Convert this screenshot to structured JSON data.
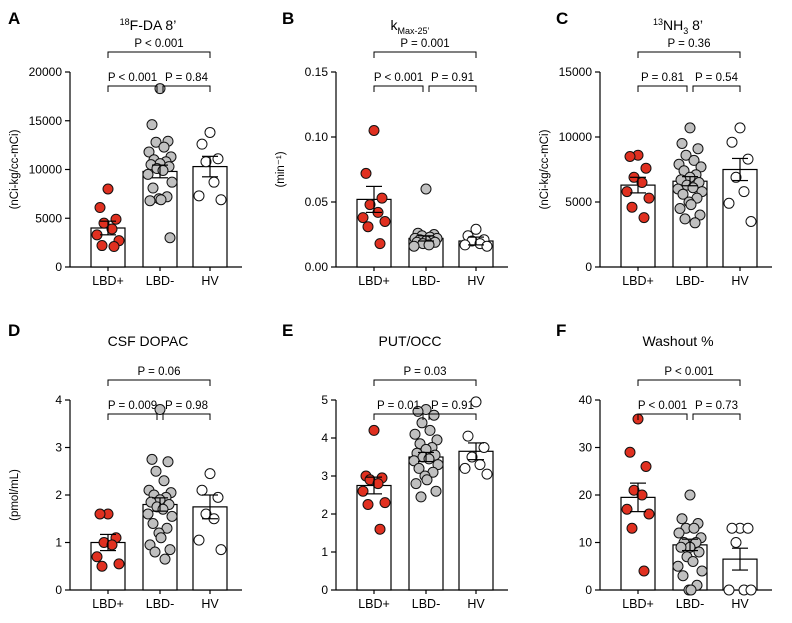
{
  "colors": {
    "LBD+": "#e03020",
    "LBD-": "#c0c0c0",
    "HV": "#ffffff"
  },
  "chart_data": [
    {
      "panel": "A",
      "type": "bar",
      "title_sup": "18",
      "title": "F-DA 8’",
      "ylabel": "(nCi-kg/cc-mCi)",
      "categories": [
        "LBD+",
        "LBD-",
        "HV"
      ],
      "ylim": [
        0,
        20000
      ],
      "yticks": [
        0,
        5000,
        10000,
        15000,
        20000
      ],
      "ytick_labels": [
        "0",
        "5000",
        "10000",
        "15000",
        "20000"
      ],
      "means": [
        4000,
        9800,
        10300
      ],
      "sem": [
        700,
        650,
        1050
      ],
      "points": [
        [
          8000,
          6100,
          4900,
          4500,
          3900,
          3300,
          2700,
          2200,
          2100
        ],
        [
          18300,
          14600,
          12900,
          12800,
          12300,
          11800,
          11300,
          11000,
          10800,
          10600,
          10500,
          10300,
          10100,
          9900,
          9500,
          8700,
          8100,
          7200,
          7000,
          6900,
          6800,
          3000
        ],
        [
          13800,
          12600,
          11100,
          10800,
          8700,
          7300,
          6900
        ]
      ],
      "comparisons": [
        {
          "pair": [
            0,
            1
          ],
          "label": "P < 0.001",
          "level": 1
        },
        {
          "pair": [
            1,
            2
          ],
          "label": "P = 0.84",
          "level": 1
        },
        {
          "pair": [
            0,
            2
          ],
          "label": "P < 0.001",
          "level": 2
        }
      ]
    },
    {
      "panel": "B",
      "type": "bar",
      "title_main": "k",
      "title_sub": "Max-25’",
      "ylabel": "(min⁻¹)",
      "categories": [
        "LBD+",
        "LBD-",
        "HV"
      ],
      "ylim": [
        0,
        0.15
      ],
      "yticks": [
        0,
        0.05,
        0.1,
        0.15
      ],
      "ytick_labels": [
        "0.00",
        "0.05",
        "0.10",
        "0.15"
      ],
      "means": [
        0.052,
        0.022,
        0.02
      ],
      "sem": [
        0.01,
        0.002,
        0.003
      ],
      "points": [
        [
          0.105,
          0.072,
          0.053,
          0.048,
          0.042,
          0.038,
          0.035,
          0.031,
          0.018
        ],
        [
          0.06,
          0.026,
          0.025,
          0.024,
          0.023,
          0.022,
          0.022,
          0.021,
          0.02,
          0.02,
          0.019,
          0.019,
          0.018,
          0.017,
          0.016
        ],
        [
          0.029,
          0.024,
          0.021,
          0.02,
          0.018,
          0.017,
          0.016
        ]
      ],
      "comparisons": [
        {
          "pair": [
            0,
            1
          ],
          "label": "P < 0.001",
          "level": 1
        },
        {
          "pair": [
            1,
            2
          ],
          "label": "P = 0.91",
          "level": 1
        },
        {
          "pair": [
            0,
            2
          ],
          "label": "P = 0.001",
          "level": 2
        }
      ]
    },
    {
      "panel": "C",
      "type": "bar",
      "title_sup": "13",
      "title": "NH",
      "title_sub": "3",
      "title_tail": " 8’",
      "ylabel": "(nCi-kg/cc-mCi)",
      "categories": [
        "LBD+",
        "LBD-",
        "HV"
      ],
      "ylim": [
        0,
        15000
      ],
      "yticks": [
        0,
        5000,
        10000,
        15000
      ],
      "ytick_labels": [
        "0",
        "5000",
        "10000",
        "15000"
      ],
      "means": [
        6300,
        6600,
        7500
      ],
      "sem": [
        600,
        350,
        850
      ],
      "points": [
        [
          8600,
          8500,
          7600,
          6900,
          6500,
          5800,
          5300,
          4600,
          3800
        ],
        [
          10700,
          9500,
          9100,
          8600,
          8200,
          7900,
          7700,
          7400,
          7100,
          6900,
          6700,
          6500,
          6300,
          6100,
          6000,
          5800,
          5600,
          5300,
          5000,
          4800,
          4500,
          4000,
          3700,
          3400
        ],
        [
          10700,
          9600,
          8300,
          6900,
          5800,
          4900,
          3500
        ]
      ],
      "comparisons": [
        {
          "pair": [
            0,
            1
          ],
          "label": "P = 0.81",
          "level": 1
        },
        {
          "pair": [
            1,
            2
          ],
          "label": "P = 0.54",
          "level": 1
        },
        {
          "pair": [
            0,
            2
          ],
          "label": "P = 0.36",
          "level": 2
        }
      ]
    },
    {
      "panel": "D",
      "type": "bar",
      "title": "CSF DOPAC",
      "ylabel": "(pmol/mL)",
      "categories": [
        "LBD+",
        "LBD-",
        "HV"
      ],
      "ylim": [
        0,
        4
      ],
      "yticks": [
        0,
        1,
        2,
        3,
        4
      ],
      "ytick_labels": [
        "0",
        "1",
        "2",
        "3",
        "4"
      ],
      "means": [
        1.0,
        1.8,
        1.75
      ],
      "sem": [
        0.17,
        0.14,
        0.25
      ],
      "points": [
        [
          1.6,
          1.6,
          1.1,
          1.0,
          0.95,
          0.7,
          0.55,
          0.5
        ],
        [
          3.8,
          2.75,
          2.7,
          2.5,
          2.3,
          2.1,
          2.05,
          2.0,
          1.95,
          1.9,
          1.85,
          1.8,
          1.75,
          1.7,
          1.6,
          1.55,
          1.4,
          1.3,
          1.2,
          1.1,
          0.95,
          0.85,
          0.8,
          0.65
        ],
        [
          2.45,
          2.1,
          1.95,
          1.6,
          1.5,
          1.05,
          0.85
        ]
      ],
      "comparisons": [
        {
          "pair": [
            0,
            1
          ],
          "label": "P = 0.009",
          "level": 1
        },
        {
          "pair": [
            1,
            2
          ],
          "label": "P = 0.98",
          "level": 1
        },
        {
          "pair": [
            0,
            2
          ],
          "label": "P = 0.06",
          "level": 2
        }
      ]
    },
    {
      "panel": "E",
      "type": "bar",
      "title": "PUT/OCC",
      "ylabel": "",
      "categories": [
        "LBD+",
        "LBD-",
        "HV"
      ],
      "ylim": [
        0,
        5
      ],
      "yticks": [
        0,
        1,
        2,
        3,
        4,
        5
      ],
      "ytick_labels": [
        "0",
        "1",
        "2",
        "3",
        "4",
        "5"
      ],
      "means": [
        2.75,
        3.5,
        3.65
      ],
      "sem": [
        0.22,
        0.12,
        0.22
      ],
      "points": [
        [
          4.2,
          3.0,
          2.95,
          2.9,
          2.8,
          2.6,
          2.3,
          2.25,
          1.6
        ],
        [
          4.75,
          4.7,
          4.6,
          4.4,
          4.2,
          4.1,
          3.95,
          3.85,
          3.75,
          3.7,
          3.6,
          3.55,
          3.5,
          3.45,
          3.4,
          3.3,
          3.2,
          3.1,
          3.0,
          2.9,
          2.8,
          2.6,
          2.45
        ],
        [
          4.95,
          4.05,
          3.75,
          3.5,
          3.3,
          3.2,
          3.05
        ]
      ],
      "comparisons": [
        {
          "pair": [
            0,
            1
          ],
          "label": "P = 0.01",
          "level": 1
        },
        {
          "pair": [
            1,
            2
          ],
          "label": "P = 0.91",
          "level": 1
        },
        {
          "pair": [
            0,
            2
          ],
          "label": "P = 0.03",
          "level": 2
        }
      ]
    },
    {
      "panel": "F",
      "type": "bar",
      "title": "Washout %",
      "ylabel": "",
      "categories": [
        "LBD+",
        "LBD-",
        "HV"
      ],
      "ylim": [
        0,
        40
      ],
      "yticks": [
        0,
        10,
        20,
        30,
        40
      ],
      "ytick_labels": [
        "0",
        "10",
        "20",
        "30",
        "40"
      ],
      "means": [
        19.5,
        9.5,
        6.5
      ],
      "sem": [
        3.0,
        1.2,
        2.3
      ],
      "points": [
        [
          36,
          29,
          26,
          21,
          20,
          17,
          16,
          13,
          4
        ],
        [
          20,
          15,
          14,
          13,
          13,
          12,
          11,
          10,
          10,
          9,
          9,
          8,
          7,
          6,
          5,
          4,
          3,
          1,
          0,
          0
        ],
        [
          13,
          13,
          13,
          10,
          0,
          0,
          0
        ]
      ],
      "comparisons": [
        {
          "pair": [
            0,
            1
          ],
          "label": "P < 0.001",
          "level": 1
        },
        {
          "pair": [
            1,
            2
          ],
          "label": "P = 0.73",
          "level": 1
        },
        {
          "pair": [
            0,
            2
          ],
          "label": "P < 0.001",
          "level": 2
        }
      ]
    }
  ]
}
